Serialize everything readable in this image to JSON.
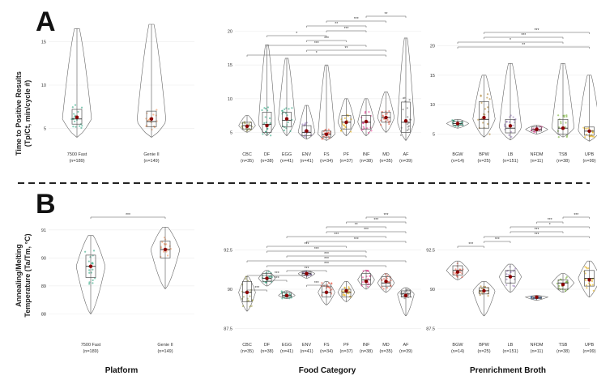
{
  "figure": {
    "panel_a_letter": "A",
    "panel_b_letter": "B",
    "panel_a_ylabel_line1": "Time to Positive Results",
    "panel_a_ylabel_line2": "(Tp/Ct, min/cycle #)",
    "panel_b_ylabel_line1": "Annealing/Melting",
    "panel_b_ylabel_line2": "Temperature (Ta/Tm, °C)",
    "xgroup_platform": "Platform",
    "xgroup_food": "Food Category",
    "xgroup_broth": "Prenrichment Broth"
  },
  "colors": {
    "teal": "#1b9e77",
    "orange": "#f08a4b",
    "olive": "#8c8a2b",
    "violet": "#8c6bb1",
    "red": "#e64b35",
    "pink": "#e7298a",
    "green": "#66a61e",
    "gold": "#e6ab02",
    "brown": "#a6761d",
    "grey": "#666666",
    "blue": "#4575b4",
    "mean_marker": "#8b0000"
  },
  "chart_data": [
    {
      "type": "violin-box",
      "panel": "A",
      "subplot": "Platform",
      "categories": [
        "7500 Fast\n(n=189)",
        "Genie II\n(n=149)"
      ],
      "labels": [
        [
          "7500 Fast",
          "(n=189)"
        ],
        [
          "Genie II",
          "(n=149)"
        ]
      ],
      "colors": [
        "teal",
        "orange"
      ],
      "ylim": [
        3,
        17
      ],
      "yticks": [
        5,
        10,
        15
      ],
      "stats": [
        {
          "min": 4.0,
          "q1": 5.5,
          "median": 6.1,
          "q3": 7.2,
          "max": 16.5,
          "mean": 6.3
        },
        {
          "min": 4.0,
          "q1": 5.2,
          "median": 5.8,
          "q3": 7.0,
          "max": 17.0,
          "mean": 6.1
        }
      ],
      "brackets": []
    },
    {
      "type": "violin-box",
      "panel": "A",
      "subplot": "Food Category",
      "categories": [
        "CBC (n=35)",
        "DF (n=38)",
        "EGG (n=41)",
        "ENV (n=41)",
        "FS (n=34)",
        "PF (n=37)",
        "INF (n=38)",
        "MD (n=35)",
        "AF (n=39)"
      ],
      "labels": [
        [
          "CBC",
          "(n=35)"
        ],
        [
          "DF",
          "(n=38)"
        ],
        [
          "EGG",
          "(n=41)"
        ],
        [
          "ENV",
          "(n=41)"
        ],
        [
          "FS",
          "(n=34)"
        ],
        [
          "PF",
          "(n=37)"
        ],
        [
          "INF",
          "(n=38)"
        ],
        [
          "MD",
          "(n=35)"
        ],
        [
          "AF",
          "(n=39)"
        ]
      ],
      "colors": [
        "olive",
        "teal",
        "teal",
        "violet",
        "red",
        "gold",
        "pink",
        "red",
        "grey"
      ],
      "ylim": [
        3,
        22
      ],
      "yticks": [
        5,
        10,
        15,
        20
      ],
      "stats": [
        {
          "min": 5.0,
          "q1": 5.5,
          "median": 6.0,
          "q3": 6.5,
          "max": 7.5,
          "mean": 5.9
        },
        {
          "min": 4.5,
          "q1": 5.0,
          "median": 6.2,
          "q3": 8.0,
          "max": 18.0,
          "mean": 6.0
        },
        {
          "min": 4.5,
          "q1": 5.8,
          "median": 6.8,
          "q3": 8.0,
          "max": 16.0,
          "mean": 7.0
        },
        {
          "min": 4.0,
          "q1": 4.5,
          "median": 5.0,
          "q3": 6.0,
          "max": 9.0,
          "mean": 5.2
        },
        {
          "min": 3.8,
          "q1": 4.3,
          "median": 4.7,
          "q3": 5.2,
          "max": 15.0,
          "mean": 4.7
        },
        {
          "min": 4.5,
          "q1": 5.5,
          "median": 6.5,
          "q3": 7.5,
          "max": 10.0,
          "mean": 6.5
        },
        {
          "min": 4.5,
          "q1": 5.5,
          "median": 6.5,
          "q3": 7.5,
          "max": 10.0,
          "mean": 6.6
        },
        {
          "min": 5.0,
          "q1": 6.5,
          "median": 7.2,
          "q3": 8.0,
          "max": 11.0,
          "mean": 7.2
        },
        {
          "min": 3.8,
          "q1": 5.0,
          "median": 6.5,
          "q3": 9.5,
          "max": 19.0,
          "mean": 6.7
        }
      ],
      "brackets": [
        {
          "from": "INF",
          "to": "AF",
          "label": "**"
        },
        {
          "from": "FS",
          "to": "MD",
          "label": "***"
        },
        {
          "from": "ENV",
          "to": "INF",
          "label": "**"
        },
        {
          "from": "FS",
          "to": "INF",
          "label": "***"
        },
        {
          "from": "DF",
          "to": "FS",
          "label": "*"
        },
        {
          "from": "ENV",
          "to": "PF",
          "label": "***"
        },
        {
          "from": "DF",
          "to": "INF",
          "label": "***"
        },
        {
          "from": "ENV",
          "to": "MD",
          "label": "**"
        },
        {
          "from": "CBC",
          "to": "MD",
          "label": "*"
        }
      ]
    },
    {
      "type": "violin-box",
      "panel": "A",
      "subplot": "Prenrichment Broth",
      "categories": [
        "BGW (n=14)",
        "BPW (n=25)",
        "LB (n=151)",
        "NFDM (n=11)",
        "TSB (n=38)",
        "UPB (n=99)"
      ],
      "labels": [
        [
          "BGW",
          "(n=14)"
        ],
        [
          "BPW",
          "(n=25)"
        ],
        [
          "LB",
          "(n=151)"
        ],
        [
          "NFDM",
          "(n=11)"
        ],
        [
          "TSB",
          "(n=38)"
        ],
        [
          "UPB",
          "(n=99)"
        ]
      ],
      "colors": [
        "teal",
        "brown",
        "violet",
        "pink",
        "green",
        "gold"
      ],
      "ylim": [
        3,
        22
      ],
      "yticks": [
        5,
        10,
        15,
        20
      ],
      "stats": [
        {
          "min": 6.0,
          "q1": 6.5,
          "median": 6.8,
          "q3": 7.2,
          "max": 7.5,
          "mean": 6.8
        },
        {
          "min": 4.5,
          "q1": 6.0,
          "median": 7.5,
          "q3": 10.5,
          "max": 15.0,
          "mean": 7.8
        },
        {
          "min": 4.0,
          "q1": 5.2,
          "median": 6.0,
          "q3": 7.5,
          "max": 17.0,
          "mean": 6.4
        },
        {
          "min": 5.0,
          "q1": 5.5,
          "median": 5.8,
          "q3": 6.2,
          "max": 6.5,
          "mean": 5.8
        },
        {
          "min": 4.5,
          "q1": 5.0,
          "median": 6.0,
          "q3": 7.5,
          "max": 17.0,
          "mean": 6.0
        },
        {
          "min": 3.8,
          "q1": 4.8,
          "median": 5.5,
          "q3": 6.2,
          "max": 15.0,
          "mean": 5.5
        }
      ],
      "brackets": [
        {
          "from": "BPW",
          "to": "UPB",
          "label": "***"
        },
        {
          "from": "BPW",
          "to": "TSB",
          "label": "***"
        },
        {
          "from": "BGW",
          "to": "TSB",
          "label": "*"
        },
        {
          "from": "BGW",
          "to": "UPB",
          "label": "**"
        }
      ]
    },
    {
      "type": "violin-box",
      "panel": "B",
      "subplot": "Platform",
      "categories": [
        "7500 Fast\n(n=189)",
        "Genie II\n(n=149)"
      ],
      "labels": [
        [
          "7500 Fast",
          "(n=189)"
        ],
        [
          "Genie II",
          "(n=149)"
        ]
      ],
      "colors": [
        "teal",
        "orange"
      ],
      "ylim": [
        87.2,
        91.4
      ],
      "yticks": [
        88,
        89,
        90,
        91
      ],
      "stats": [
        {
          "min": 88.0,
          "q1": 89.3,
          "median": 89.7,
          "q3": 90.1,
          "max": 90.8,
          "mean": 89.7
        },
        {
          "min": 88.9,
          "q1": 90.0,
          "median": 90.3,
          "q3": 90.6,
          "max": 91.1,
          "mean": 90.3
        }
      ],
      "brackets": [
        {
          "from": "7500 Fast",
          "to": "Genie II",
          "label": "***"
        }
      ]
    },
    {
      "type": "violin-box",
      "panel": "B",
      "subplot": "Food Category",
      "categories": [
        "CBC (n=35)",
        "DF (n=38)",
        "EGG (n=41)",
        "ENV (n=41)",
        "FS (n=34)",
        "PF (n=37)",
        "INF (n=38)",
        "MD (n=35)",
        "AF (n=39)"
      ],
      "labels": [
        [
          "CBC",
          "(n=35)"
        ],
        [
          "DF",
          "(n=38)"
        ],
        [
          "EGG",
          "(n=41)"
        ],
        [
          "ENV",
          "(n=41)"
        ],
        [
          "FS",
          "(n=34)"
        ],
        [
          "PF",
          "(n=37)"
        ],
        [
          "INF",
          "(n=38)"
        ],
        [
          "MD",
          "(n=35)"
        ],
        [
          "AF",
          "(n=39)"
        ]
      ],
      "colors": [
        "olive",
        "teal",
        "teal",
        "violet",
        "red",
        "gold",
        "pink",
        "red",
        "grey"
      ],
      "ylim": [
        87.0,
        94.5
      ],
      "yticks": [
        87.5,
        90.0,
        92.5
      ],
      "stats": [
        {
          "min": 88.6,
          "q1": 89.2,
          "median": 89.8,
          "q3": 90.5,
          "max": 90.8,
          "mean": 89.8
        },
        {
          "min": 90.2,
          "q1": 90.5,
          "median": 90.7,
          "q3": 91.0,
          "max": 91.2,
          "mean": 90.7
        },
        {
          "min": 89.4,
          "q1": 89.5,
          "median": 89.6,
          "q3": 89.8,
          "max": 89.9,
          "mean": 89.6
        },
        {
          "min": 90.7,
          "q1": 90.9,
          "median": 91.0,
          "q3": 91.1,
          "max": 91.2,
          "mean": 91.0
        },
        {
          "min": 89.0,
          "q1": 89.5,
          "median": 89.8,
          "q3": 90.2,
          "max": 90.5,
          "mean": 89.8
        },
        {
          "min": 89.2,
          "q1": 89.5,
          "median": 89.8,
          "q3": 90.0,
          "max": 90.5,
          "mean": 89.9
        },
        {
          "min": 90.0,
          "q1": 90.3,
          "median": 90.6,
          "q3": 91.0,
          "max": 91.2,
          "mean": 90.5
        },
        {
          "min": 89.8,
          "q1": 90.2,
          "median": 90.4,
          "q3": 90.8,
          "max": 91.0,
          "mean": 90.5
        },
        {
          "min": 88.3,
          "q1": 89.5,
          "median": 89.7,
          "q3": 89.9,
          "max": 90.1,
          "mean": 89.6
        }
      ],
      "brackets": [
        {
          "from": "INF",
          "to": "AF",
          "label": "***"
        },
        {
          "from": "PF",
          "to": "AF",
          "label": "***"
        },
        {
          "from": "FS",
          "to": "MD",
          "label": "**"
        },
        {
          "from": "FS",
          "to": "AF",
          "label": "***"
        },
        {
          "from": "EGG",
          "to": "MD",
          "label": "***"
        },
        {
          "from": "ENV",
          "to": "AF",
          "label": "***"
        },
        {
          "from": "DF",
          "to": "PF",
          "label": "***"
        },
        {
          "from": "DF",
          "to": "INF",
          "label": "***"
        },
        {
          "from": "EGG",
          "to": "INF",
          "label": "***"
        },
        {
          "from": "CBC",
          "to": "AF",
          "label": "***"
        },
        {
          "from": "DF",
          "to": "MD",
          "label": "***"
        },
        {
          "from": "EGG",
          "to": "FS",
          "label": "***"
        },
        {
          "from": "CBC",
          "to": "ENV",
          "label": "***"
        },
        {
          "from": "DF",
          "to": "EGG",
          "label": "***"
        },
        {
          "from": "ENV",
          "to": "FS",
          "label": "***"
        },
        {
          "from": "CBC",
          "to": "DF",
          "label": "***"
        }
      ]
    },
    {
      "type": "violin-box",
      "panel": "B",
      "subplot": "Prenrichment Broth",
      "categories": [
        "BGW (n=14)",
        "BPW (n=25)",
        "LB (n=151)",
        "NFDM (n=11)",
        "TSB (n=38)",
        "UPB (n=99)"
      ],
      "labels": [
        [
          "BGW",
          "(n=14)"
        ],
        [
          "BPW",
          "(n=25)"
        ],
        [
          "LB",
          "(n=151)"
        ],
        [
          "NFDM",
          "(n=11)"
        ],
        [
          "TSB",
          "(n=38)"
        ],
        [
          "UPB",
          "(n=99)"
        ]
      ],
      "colors": [
        "red",
        "brown",
        "violet",
        "blue",
        "green",
        "gold"
      ],
      "ylim": [
        87.0,
        94.5
      ],
      "yticks": [
        87.5,
        90.0,
        92.5
      ],
      "stats": [
        {
          "min": 90.6,
          "q1": 90.9,
          "median": 91.2,
          "q3": 91.5,
          "max": 91.8,
          "mean": 91.1
        },
        {
          "min": 88.3,
          "q1": 89.7,
          "median": 89.9,
          "q3": 90.1,
          "max": 90.5,
          "mean": 89.9
        },
        {
          "min": 89.8,
          "q1": 90.4,
          "median": 90.8,
          "q3": 91.2,
          "max": 91.6,
          "mean": 90.8
        },
        {
          "min": 89.3,
          "q1": 89.4,
          "median": 89.5,
          "q3": 89.5,
          "max": 89.6,
          "mean": 89.5
        },
        {
          "min": 89.8,
          "q1": 90.0,
          "median": 90.4,
          "q3": 90.6,
          "max": 91.0,
          "mean": 90.3
        },
        {
          "min": 89.5,
          "q1": 90.2,
          "median": 90.7,
          "q3": 91.2,
          "max": 91.8,
          "mean": 90.6
        }
      ],
      "brackets": [
        {
          "from": "TSB",
          "to": "UPB",
          "label": "***"
        },
        {
          "from": "NFDM",
          "to": "TSB",
          "label": "***"
        },
        {
          "from": "LB",
          "to": "UPB",
          "label": "*"
        },
        {
          "from": "LB",
          "to": "TSB",
          "label": "***"
        },
        {
          "from": "BPW",
          "to": "UPB",
          "label": "***"
        },
        {
          "from": "BPW",
          "to": "LB",
          "label": "***"
        },
        {
          "from": "BGW",
          "to": "BPW",
          "label": "***"
        }
      ]
    }
  ]
}
